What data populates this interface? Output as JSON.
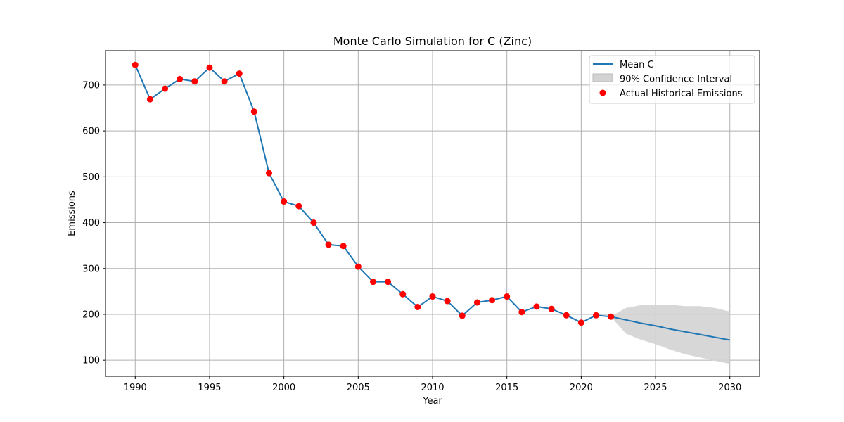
{
  "chart_data": {
    "type": "line",
    "title": "Monte Carlo Simulation for C (Zinc)",
    "xlabel": "Year",
    "ylabel": "Emissions",
    "xlim": [
      1988,
      2032
    ],
    "ylim": [
      65,
      775
    ],
    "xticks": [
      1990,
      1995,
      2000,
      2005,
      2010,
      2015,
      2020,
      2025,
      2030
    ],
    "yticks": [
      100,
      200,
      300,
      400,
      500,
      600,
      700
    ],
    "grid": true,
    "legend_position": "top-right",
    "colors": {
      "mean": "#1f77b4",
      "interval": "#d3d3d3",
      "historical": "#ff0000",
      "grid": "#b0b0b0"
    },
    "legend": [
      {
        "label": "Mean C",
        "kind": "line"
      },
      {
        "label": "90% Confidence Interval",
        "kind": "patch"
      },
      {
        "label": "Actual Historical Emissions",
        "kind": "marker"
      }
    ],
    "series": [
      {
        "name": "Mean C",
        "x": [
          1990,
          1991,
          1992,
          1993,
          1994,
          1995,
          1996,
          1997,
          1998,
          1999,
          2000,
          2001,
          2002,
          2003,
          2004,
          2005,
          2006,
          2007,
          2008,
          2009,
          2010,
          2011,
          2012,
          2013,
          2014,
          2015,
          2016,
          2017,
          2018,
          2019,
          2020,
          2021,
          2022,
          2023,
          2024,
          2025,
          2026,
          2027,
          2028,
          2029,
          2030
        ],
        "values": [
          744,
          669,
          692,
          713,
          708,
          738,
          708,
          725,
          642,
          508,
          446,
          436,
          400,
          352,
          349,
          304,
          271,
          271,
          244,
          216,
          239,
          229,
          197,
          226,
          231,
          239,
          205,
          217,
          212,
          198,
          182,
          198,
          195,
          188,
          181,
          175,
          168,
          162,
          156,
          150,
          144
        ]
      },
      {
        "name": "90% Confidence Interval",
        "x": [
          2022,
          2023,
          2024,
          2025,
          2026,
          2027,
          2028,
          2029,
          2030
        ],
        "lower": [
          195,
          158,
          145,
          135,
          123,
          113,
          106,
          99,
          92
        ],
        "upper": [
          195,
          214,
          220,
          221,
          221,
          218,
          218,
          214,
          206
        ]
      },
      {
        "name": "Actual Historical Emissions",
        "x": [
          1990,
          1991,
          1992,
          1993,
          1994,
          1995,
          1996,
          1997,
          1998,
          1999,
          2000,
          2001,
          2002,
          2003,
          2004,
          2005,
          2006,
          2007,
          2008,
          2009,
          2010,
          2011,
          2012,
          2013,
          2014,
          2015,
          2016,
          2017,
          2018,
          2019,
          2020,
          2021,
          2022
        ],
        "values": [
          744,
          669,
          692,
          713,
          708,
          738,
          708,
          725,
          642,
          508,
          446,
          436,
          400,
          352,
          349,
          304,
          271,
          271,
          244,
          216,
          239,
          229,
          197,
          226,
          231,
          239,
          205,
          217,
          212,
          198,
          182,
          198,
          195
        ]
      }
    ]
  }
}
